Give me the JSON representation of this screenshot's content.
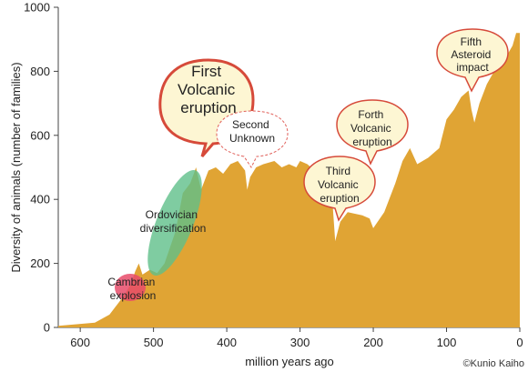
{
  "chart_data": {
    "type": "area",
    "xlabel": "million years ago",
    "ylabel": "Diversity of animals (number of families)",
    "xlim": [
      630,
      0
    ],
    "ylim": [
      0,
      1000
    ],
    "x_ticks": [
      "600",
      "500",
      "400",
      "300",
      "200",
      "100",
      "0"
    ],
    "x_tick_values": [
      600,
      500,
      400,
      300,
      200,
      100,
      0
    ],
    "y_ticks": [
      "0",
      "200",
      "400",
      "600",
      "800",
      "1000"
    ],
    "y_tick_values": [
      0,
      200,
      400,
      600,
      800,
      1000
    ],
    "area_color": "#e0a434",
    "grid": false,
    "series": [
      {
        "x": [
          630,
          580,
          560,
          540,
          530,
          525,
          520,
          515,
          505,
          495,
          485,
          470,
          460,
          450,
          445,
          442,
          435,
          425,
          415,
          405,
          395,
          385,
          375,
          372,
          368,
          360,
          350,
          335,
          325,
          315,
          305,
          300,
          290,
          275,
          265,
          256,
          252,
          245,
          235,
          225,
          215,
          205,
          200,
          185,
          170,
          160,
          150,
          140,
          125,
          110,
          100,
          90,
          80,
          70,
          66,
          62,
          55,
          45,
          35,
          20,
          10,
          5,
          0
        ],
        "y": [
          5,
          15,
          40,
          100,
          140,
          175,
          200,
          165,
          180,
          170,
          200,
          300,
          420,
          450,
          480,
          500,
          430,
          490,
          500,
          480,
          510,
          520,
          490,
          430,
          470,
          500,
          510,
          520,
          500,
          510,
          500,
          520,
          510,
          480,
          450,
          400,
          270,
          330,
          360,
          355,
          350,
          340,
          310,
          360,
          450,
          520,
          560,
          510,
          530,
          560,
          650,
          680,
          720,
          740,
          680,
          640,
          700,
          760,
          800,
          840,
          880,
          920,
          920
        ]
      }
    ],
    "annotations": {
      "cambrian": {
        "line1": "Cambrian",
        "line2": "explosion",
        "color": "#e84b6a"
      },
      "ordovician": {
        "line1": "Ordovician",
        "line2": "diversification",
        "color": "#5fbf8a"
      },
      "first": {
        "line1": "First",
        "line2": "Volcanic",
        "line3": "eruption"
      },
      "second": {
        "line1": "Second",
        "line2": "Unknown"
      },
      "third": {
        "line1": "Third",
        "line2": "Volcanic",
        "line3": "eruption"
      },
      "forth": {
        "line1": "Forth",
        "line2": "Volcanic",
        "line3": "eruption"
      },
      "fifth": {
        "line1": "Fifth",
        "line2": "Asteroid",
        "line3": "impact"
      }
    },
    "credit": "©Kunio Kaiho",
    "bubble_fill": "#fdf6d3",
    "bubble_stroke": "#d64a3a"
  }
}
